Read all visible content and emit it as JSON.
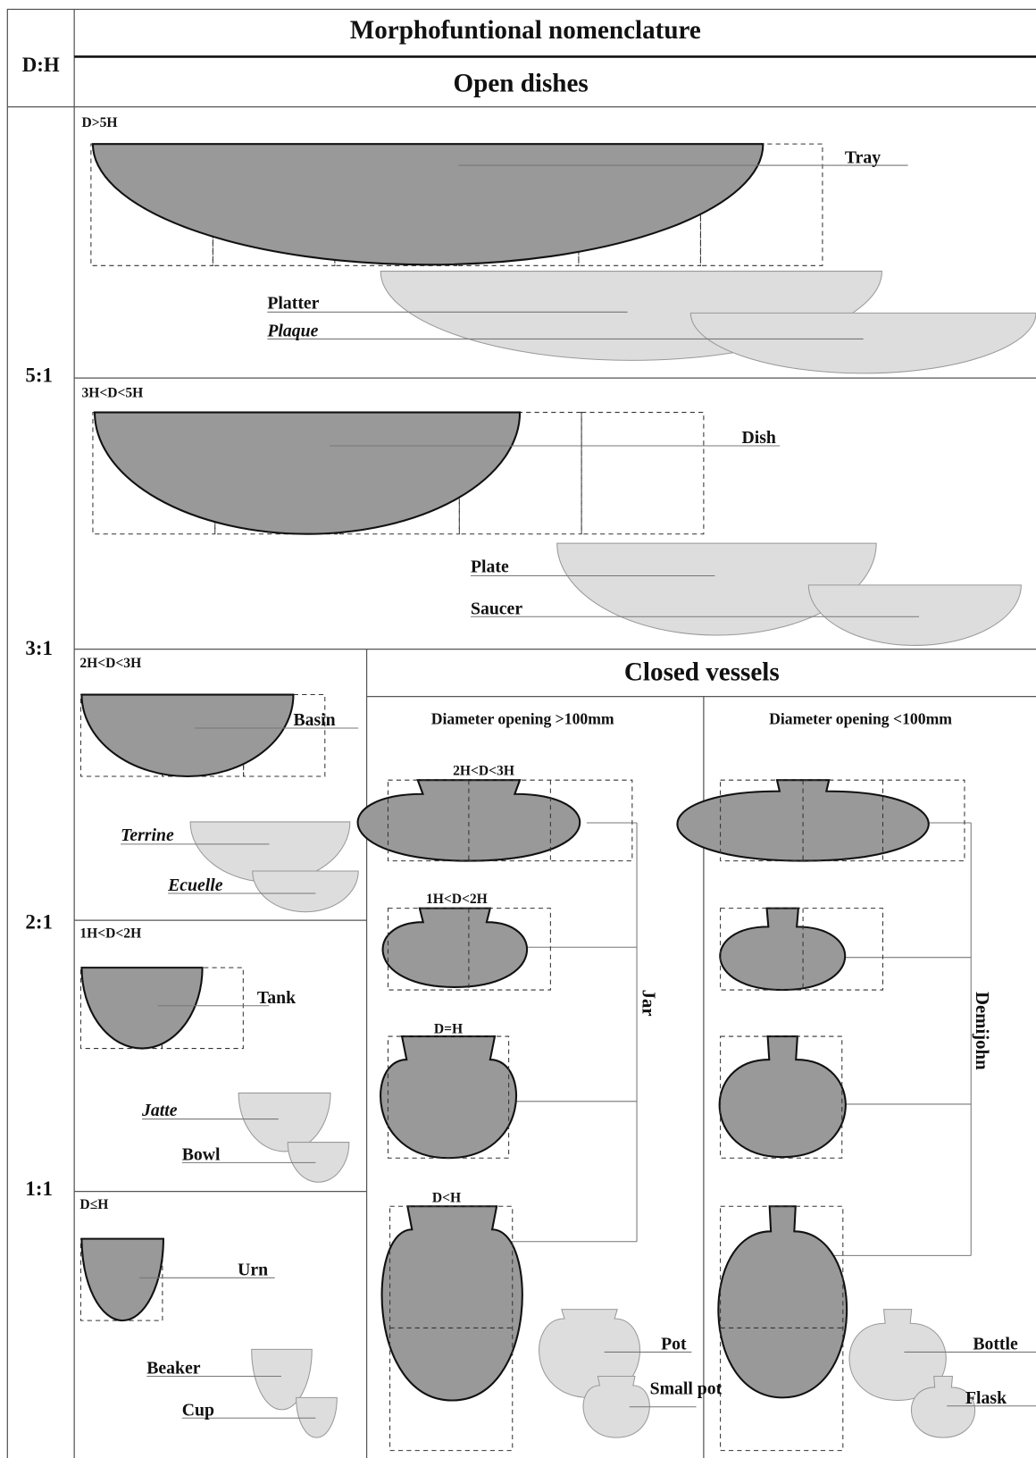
{
  "header": {
    "ratio_column": "D:H",
    "title": "Morphofuntional nomenclature",
    "subtitle": "Open dishes"
  },
  "ratios": [
    "5:1",
    "3:1",
    "2:1",
    "1:1"
  ],
  "open_dishes": [
    {
      "condition": "D>5H",
      "names": [
        "Tray",
        "Platter",
        "Plaque"
      ]
    },
    {
      "condition": "3H<D<5H",
      "names": [
        "Dish",
        "Plate",
        "Saucer"
      ]
    }
  ],
  "small_open": [
    {
      "condition": "2H<D<3H",
      "names": [
        "Basin",
        "Terrine",
        "Ecuelle"
      ]
    },
    {
      "condition": "1H<D<2H",
      "names": [
        "Tank",
        "Jatte",
        "Bowl"
      ]
    },
    {
      "condition": "D≤H",
      "names": [
        "Urn",
        "Beaker",
        "Cup"
      ]
    }
  ],
  "closed_vessels": {
    "title": "Closed vessels",
    "columns": [
      {
        "heading": "Diameter opening >100mm",
        "group": "Jar",
        "conditions": [
          "2H<D<3H",
          "1H<D<2H",
          "D=H",
          "D<H"
        ],
        "names": [
          "Pot",
          "Small pot"
        ]
      },
      {
        "heading": "Diameter opening <100mm",
        "group": "Demijohn",
        "names": [
          "Bottle",
          "Flask"
        ]
      }
    ]
  }
}
